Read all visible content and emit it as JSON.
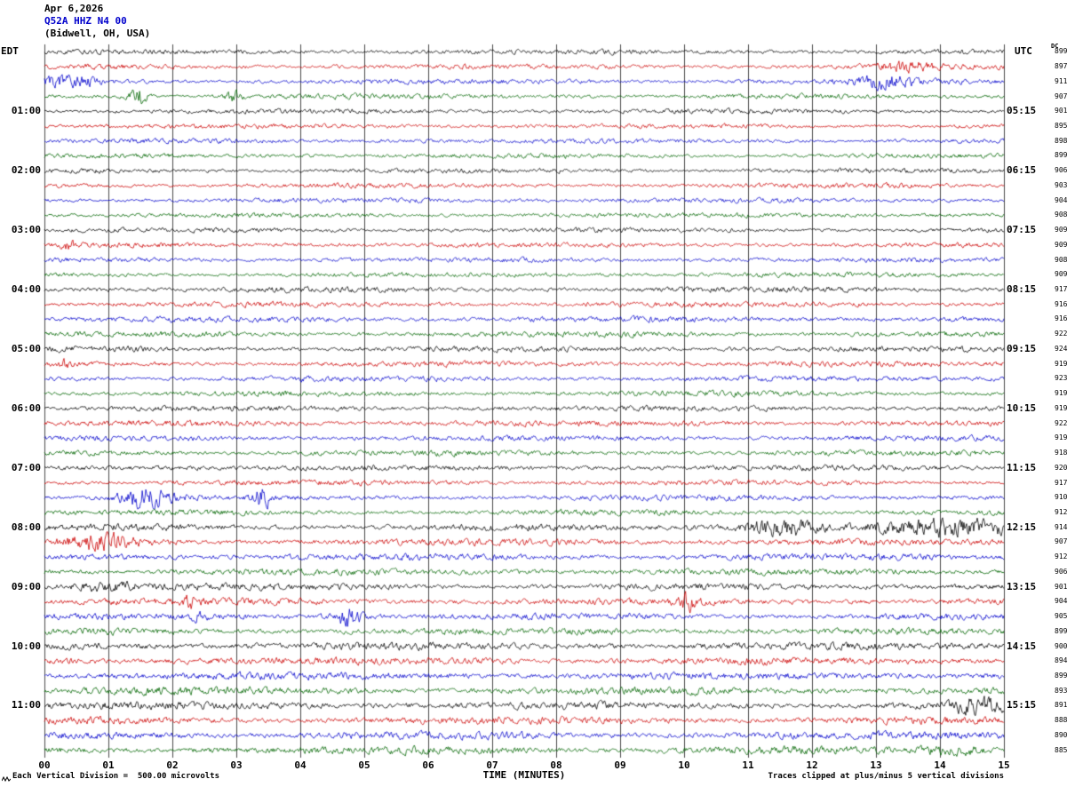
{
  "header": {
    "date": "Apr 6,2026",
    "station": "Q52A HHZ N4 00",
    "location": "(Bidwell, OH, USA)"
  },
  "axis": {
    "left_tz": "EDT",
    "right_tz": "UTC",
    "dc_column": "DC",
    "x_title": "TIME (MINUTES)"
  },
  "footer": {
    "left_note": "Each Vertical Division =  500.00 microvolts",
    "right_note": "Traces clipped at plus/minus 5 vertical divisions"
  },
  "chart_data": {
    "type": "line",
    "subtype": "helicorder-seismogram",
    "minutes_per_row": 15,
    "row_count": 48,
    "trace_color_cycle": [
      "#000000",
      "#cc0000",
      "#0000cc",
      "#006600"
    ],
    "grid_color": "#4a4a4a",
    "x_ticks": [
      "00",
      "01",
      "02",
      "03",
      "04",
      "05",
      "06",
      "07",
      "08",
      "09",
      "10",
      "11",
      "12",
      "13",
      "14",
      "15"
    ],
    "hour_labels": [
      {
        "row": 4,
        "edt": "01:00",
        "utc": "05:15"
      },
      {
        "row": 8,
        "edt": "02:00",
        "utc": "06:15"
      },
      {
        "row": 12,
        "edt": "03:00",
        "utc": "07:15"
      },
      {
        "row": 16,
        "edt": "04:00",
        "utc": "08:15"
      },
      {
        "row": 20,
        "edt": "05:00",
        "utc": "09:15"
      },
      {
        "row": 24,
        "edt": "06:00",
        "utc": "10:15"
      },
      {
        "row": 28,
        "edt": "07:00",
        "utc": "11:15"
      },
      {
        "row": 32,
        "edt": "08:00",
        "utc": "12:15"
      },
      {
        "row": 36,
        "edt": "09:00",
        "utc": "13:15"
      },
      {
        "row": 40,
        "edt": "10:00",
        "utc": "14:15"
      },
      {
        "row": 44,
        "edt": "11:00",
        "utc": "15:15"
      }
    ],
    "dc_values": [
      899,
      897,
      911,
      907,
      901,
      895,
      898,
      899,
      906,
      903,
      904,
      908,
      909,
      909,
      908,
      909,
      917,
      916,
      916,
      922,
      924,
      919,
      923,
      919,
      919,
      922,
      919,
      918,
      920,
      917,
      910,
      912,
      914,
      907,
      912,
      906,
      901,
      904,
      905,
      899,
      900,
      894,
      899,
      893,
      891,
      888,
      890,
      885
    ],
    "noise_amp_bands": [
      [
        0,
        15,
        1.6
      ],
      [
        16,
        31,
        1.85
      ],
      [
        32,
        39,
        2.2
      ],
      [
        40,
        47,
        2.5
      ]
    ],
    "events": [
      {
        "row": 1,
        "minute": 13.5,
        "width": 0.3,
        "amp": 4
      },
      {
        "row": 2,
        "minute": 0.35,
        "width": 0.35,
        "amp": 5
      },
      {
        "row": 2,
        "minute": 13.1,
        "width": 0.35,
        "amp": 5
      },
      {
        "row": 3,
        "minute": 1.45,
        "width": 0.1,
        "amp": 8
      },
      {
        "row": 3,
        "minute": 2.95,
        "width": 0.08,
        "amp": 6
      },
      {
        "row": 13,
        "minute": 0.4,
        "width": 0.08,
        "amp": 5
      },
      {
        "row": 21,
        "minute": 0.3,
        "width": 0.07,
        "amp": 4
      },
      {
        "row": 30,
        "minute": 1.6,
        "width": 0.3,
        "amp": 9
      },
      {
        "row": 30,
        "minute": 3.4,
        "width": 0.07,
        "amp": 13
      },
      {
        "row": 32,
        "minute": 11.5,
        "width": 0.4,
        "amp": 7
      },
      {
        "row": 32,
        "minute": 14.2,
        "width": 0.9,
        "amp": 6
      },
      {
        "row": 33,
        "minute": 0.9,
        "width": 0.35,
        "amp": 6
      },
      {
        "row": 36,
        "minute": 1.0,
        "width": 0.5,
        "amp": 3
      },
      {
        "row": 37,
        "minute": 2.3,
        "width": 0.1,
        "amp": 4
      },
      {
        "row": 37,
        "minute": 10.05,
        "width": 0.1,
        "amp": 6
      },
      {
        "row": 38,
        "minute": 2.4,
        "width": 0.08,
        "amp": 4
      },
      {
        "row": 38,
        "minute": 4.75,
        "width": 0.15,
        "amp": 9
      },
      {
        "row": 44,
        "minute": 14.55,
        "width": 0.25,
        "amp": 6
      },
      {
        "row": 47,
        "minute": 14.2,
        "width": 0.3,
        "amp": 4
      }
    ]
  }
}
